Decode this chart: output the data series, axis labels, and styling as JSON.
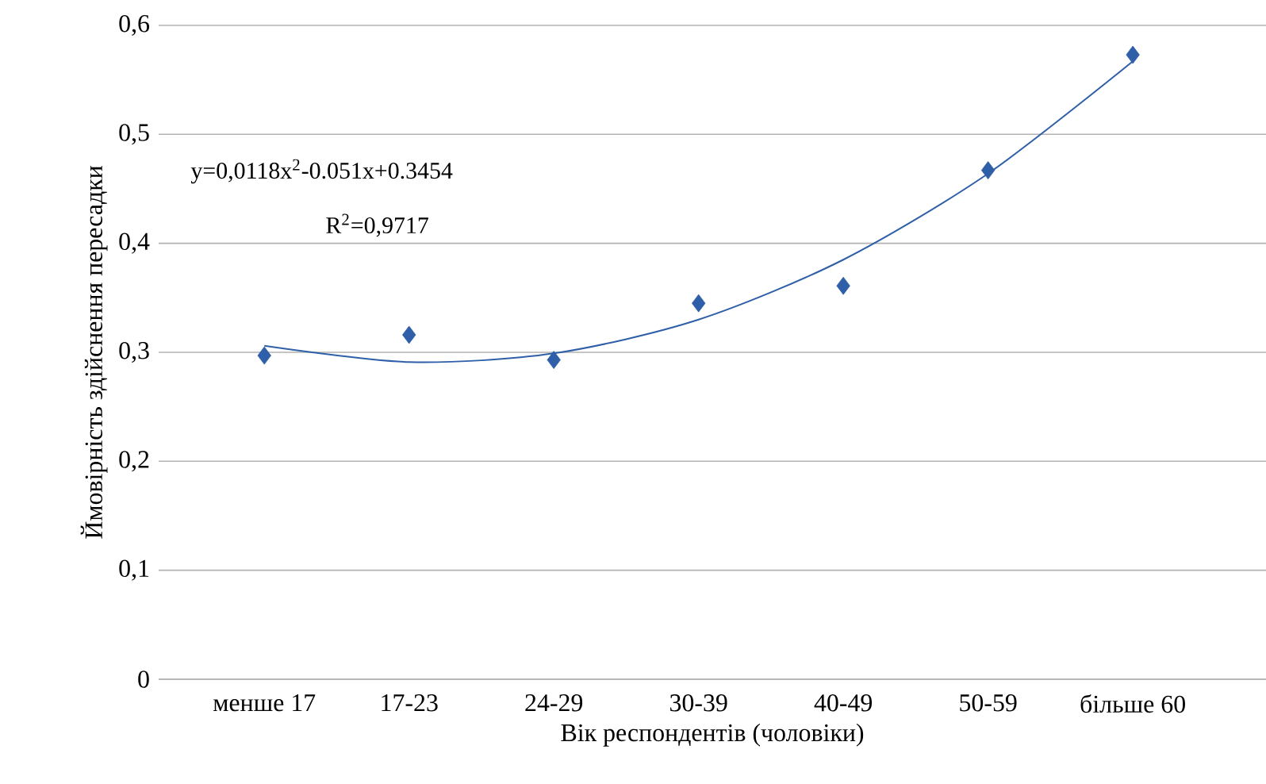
{
  "chart_data": {
    "type": "scatter",
    "xlabel": "Вік респондентів (чоловіки)",
    "ylabel": "Ймовірність здійснення пересадки",
    "categories": [
      "менше 17",
      "17-23",
      "24-29",
      "30-39",
      "40-49",
      "50-59",
      "більше 60"
    ],
    "series": [
      {
        "color": "#2e5fa8",
        "marker": "diamond",
        "values": [
          0.297,
          0.316,
          0.293,
          0.345,
          0.361,
          0.467,
          0.573
        ]
      },
      {
        "type": "line",
        "color": "#2e5fa8",
        "marker": "none",
        "line_style": "solid",
        "values": [
          0.306,
          0.291,
          0.299,
          0.33,
          0.385,
          0.464,
          0.567
        ]
      }
    ],
    "ylim": [
      0,
      0.6
    ],
    "yticks": [
      0,
      {
        "value": 0.1,
        "label": "0,1"
      },
      {
        "value": 0.2,
        "label": "0,2"
      },
      {
        "value": 0.3,
        "label": "0,3"
      },
      {
        "value": 0.4,
        "label": "0,4"
      },
      {
        "value": 0.5,
        "label": "0,5"
      },
      {
        "value": 0.6,
        "label": "0,6"
      }
    ],
    "grid": "y",
    "annotations": [
      "y=0,0118x$^{2}$-0.051x+0.3454",
      "R$^{2}$=0,9717"
    ]
  }
}
